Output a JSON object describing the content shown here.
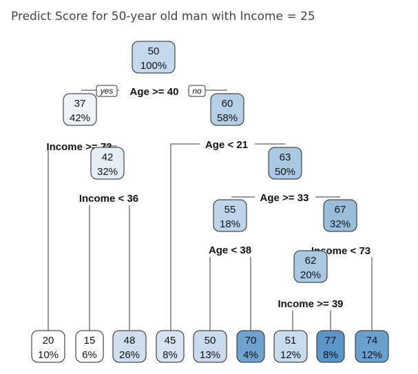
{
  "heading": "Predict Score for 50-year old man with Income = 25",
  "branch_labels": {
    "yes": "yes",
    "no": "no"
  },
  "nodes": [
    {
      "id": "root",
      "value": "50",
      "percent": "100%",
      "color": "#c5d9ec"
    },
    {
      "id": "n37",
      "value": "37",
      "percent": "42%",
      "color": "#eef3fa"
    },
    {
      "id": "n60",
      "value": "60",
      "percent": "58%",
      "color": "#b4cfe6"
    },
    {
      "id": "n42",
      "value": "42",
      "percent": "32%",
      "color": "#e6eef8"
    },
    {
      "id": "n63",
      "value": "63",
      "percent": "50%",
      "color": "#a9c8e2"
    },
    {
      "id": "n55",
      "value": "55",
      "percent": "18%",
      "color": "#bdd4ea"
    },
    {
      "id": "n67",
      "value": "67",
      "percent": "32%",
      "color": "#98bedc"
    },
    {
      "id": "n62",
      "value": "62",
      "percent": "20%",
      "color": "#a9c8e2"
    },
    {
      "id": "l20",
      "value": "20",
      "percent": "10%",
      "color": "#ffffff"
    },
    {
      "id": "l15",
      "value": "15",
      "percent": "6%",
      "color": "#ffffff"
    },
    {
      "id": "l48",
      "value": "48",
      "percent": "26%",
      "color": "#cfdfef"
    },
    {
      "id": "l45",
      "value": "45",
      "percent": "8%",
      "color": "#d6e4f2"
    },
    {
      "id": "l50",
      "value": "50",
      "percent": "13%",
      "color": "#c8dbed"
    },
    {
      "id": "l70",
      "value": "70",
      "percent": "4%",
      "color": "#6fa3cf"
    },
    {
      "id": "l51",
      "value": "51",
      "percent": "12%",
      "color": "#c8dbed"
    },
    {
      "id": "l77",
      "value": "77",
      "percent": "8%",
      "color": "#5b96c8"
    },
    {
      "id": "l74",
      "value": "74",
      "percent": "12%",
      "color": "#6aa0ce"
    }
  ],
  "splits": [
    {
      "id": "s_root",
      "text": "Age >= 40"
    },
    {
      "id": "s_37",
      "text": "Income >= 72"
    },
    {
      "id": "s_42",
      "text": "Income < 36"
    },
    {
      "id": "s_60",
      "text": "Age < 21"
    },
    {
      "id": "s_63",
      "text": "Age >= 33"
    },
    {
      "id": "s_55",
      "text": "Age < 38"
    },
    {
      "id": "s_67",
      "text": "Income < 73"
    },
    {
      "id": "s_62",
      "text": "Income >= 39"
    }
  ]
}
